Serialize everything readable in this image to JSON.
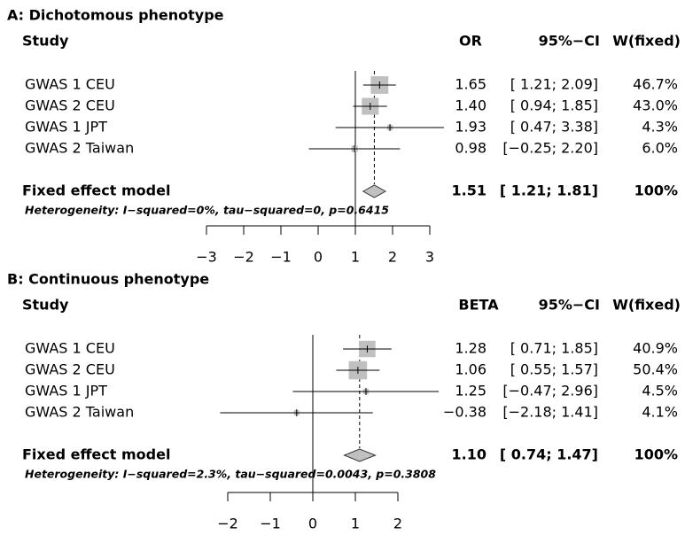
{
  "chart_data": [
    {
      "type": "forest",
      "title": "A: Dichotomous phenotype",
      "study_header": "Study",
      "estimate_header": "OR",
      "ci_header": "95%−CI",
      "weight_header": "W(fixed)",
      "categories": [
        "GWAS 1 CEU",
        "GWAS 2 CEU",
        "GWAS 1 JPT",
        "GWAS 2 Taiwan"
      ],
      "values": [
        1.65,
        1.4,
        1.93,
        0.98
      ],
      "value_labels": [
        "1.65",
        "1.40",
        "1.93",
        "0.98"
      ],
      "ci_lower": [
        1.21,
        0.94,
        0.47,
        -0.25
      ],
      "ci_upper": [
        2.09,
        1.85,
        3.38,
        2.2
      ],
      "ci_labels": [
        "[ 1.21; 2.09]",
        "[ 0.94; 1.85]",
        "[ 0.47; 3.38]",
        "[−0.25; 2.20]"
      ],
      "weights": [
        46.7,
        43.0,
        4.3,
        6.0
      ],
      "weight_labels": [
        "46.7%",
        "43.0%",
        "4.3%",
        "6.0%"
      ],
      "summary": {
        "name": "Fixed effect model",
        "value": 1.51,
        "value_label": "1.51",
        "ci_lower": 1.21,
        "ci_upper": 1.81,
        "ci_label": "[ 1.21; 1.81]",
        "weight": 100,
        "weight_label": "100%"
      },
      "heterogeneity": "Heterogeneity: I−squared=0%, tau−squared=0, p=0.6415",
      "xlim": [
        -3,
        3
      ],
      "xticks": [
        {
          "value": -3,
          "label": "−3"
        },
        {
          "value": -2,
          "label": "−2"
        },
        {
          "value": -1,
          "label": "−1"
        },
        0,
        1,
        2,
        3
      ],
      "reference_line": 1,
      "box_color": "#c0c0c0"
    },
    {
      "type": "forest",
      "title": "B: Continuous phenotype",
      "study_header": "Study",
      "estimate_header": "BETA",
      "ci_header": "95%−CI",
      "weight_header": "W(fixed)",
      "categories": [
        "GWAS 1 CEU",
        "GWAS 2 CEU",
        "GWAS 1 JPT",
        "GWAS 2 Taiwan"
      ],
      "values": [
        1.28,
        1.06,
        1.25,
        -0.38
      ],
      "value_labels": [
        "1.28",
        "1.06",
        "1.25",
        "−0.38"
      ],
      "ci_lower": [
        0.71,
        0.55,
        -0.47,
        -2.18
      ],
      "ci_upper": [
        1.85,
        1.57,
        2.96,
        1.41
      ],
      "ci_labels": [
        "[ 0.71; 1.85]",
        "[ 0.55; 1.57]",
        "[−0.47; 2.96]",
        "[−2.18; 1.41]"
      ],
      "weights": [
        40.9,
        50.4,
        4.5,
        4.1
      ],
      "weight_labels": [
        "40.9%",
        "50.4%",
        "4.5%",
        "4.1%"
      ],
      "summary": {
        "name": "Fixed effect model",
        "value": 1.1,
        "value_label": "1.10",
        "ci_lower": 0.74,
        "ci_upper": 1.47,
        "ci_label": "[ 0.74; 1.47]",
        "weight": 100,
        "weight_label": "100%"
      },
      "heterogeneity": "Heterogeneity: I−squared=2.3%, tau−squared=0.0043, p=0.3808",
      "xlim": [
        -2,
        2
      ],
      "xticks": [
        {
          "value": -2,
          "label": "−2"
        },
        {
          "value": -1,
          "label": "−1"
        },
        0,
        1,
        2
      ],
      "reference_line": 0,
      "box_color": "#c0c0c0"
    }
  ]
}
